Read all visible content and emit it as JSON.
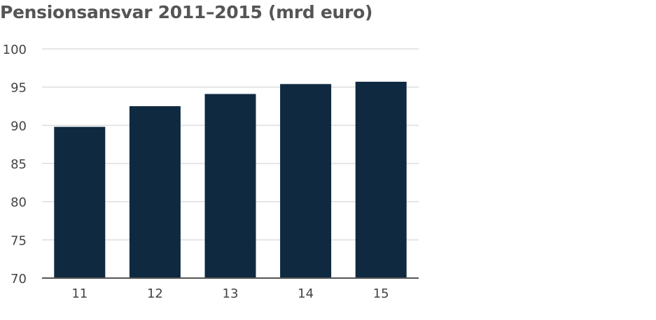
{
  "chart_data": {
    "type": "bar",
    "title": "Pensionsansvar 2011–2015 (mrd euro)",
    "xlabel": "",
    "ylabel": "",
    "categories": [
      "11",
      "12",
      "13",
      "14",
      "15"
    ],
    "values": [
      89.8,
      92.5,
      94.1,
      95.4,
      95.7
    ],
    "ylim": [
      70,
      100
    ],
    "yticks": [
      "70",
      "75",
      "80",
      "85",
      "90",
      "95",
      "100"
    ],
    "grid": true,
    "legend": "none",
    "colors": {
      "bar": "#0f2940",
      "grid": "#dddddd",
      "axis": "#555555",
      "title": "#555555"
    }
  }
}
